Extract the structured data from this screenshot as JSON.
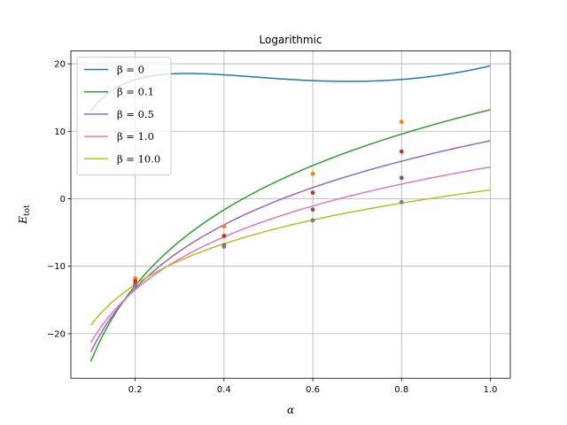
{
  "chart_data": {
    "type": "line",
    "title": "Logarithmic",
    "xlabel": "α",
    "ylabel_main": "E",
    "ylabel_sub": "tot",
    "xlim": [
      0.055,
      1.045
    ],
    "ylim": [
      -26.6,
      21.9
    ],
    "xticks": [
      0.2,
      0.4,
      0.6,
      0.8,
      1.0
    ],
    "xtick_labels": [
      "0.2",
      "0.4",
      "0.6",
      "0.8",
      "1.0"
    ],
    "yticks": [
      -20,
      -10,
      0,
      10,
      20
    ],
    "ytick_labels": [
      "−20",
      "−10",
      "0",
      "10",
      "20"
    ],
    "grid": true,
    "legend_position": "top-left",
    "series": [
      {
        "label": "β = 0",
        "color": "#1f77b4",
        "A": 19.7,
        "B": 15.4,
        "C": 35.5
      },
      {
        "label": "β = 0.1",
        "color": "#2ca02c",
        "A": 13.2,
        "B": 16.2,
        "C": 0
      },
      {
        "label": "β = 0.5",
        "color": "#9467bd",
        "A": 8.6,
        "B": 13.6,
        "C": 0
      },
      {
        "label": "β = 1.0",
        "color": "#e377c2",
        "A": 4.7,
        "B": 11.3,
        "C": 0
      },
      {
        "label": "β = 10.0",
        "color": "#bcbd22",
        "A": 1.3,
        "B": 8.7,
        "C": 0
      }
    ],
    "points": [
      {
        "x": 0.2,
        "y": -11.8,
        "color": "#ff7f0e"
      },
      {
        "x": 0.2,
        "y": -12.2,
        "color": "#d62728"
      },
      {
        "x": 0.2,
        "y": -12.6,
        "color": "#8c564b"
      },
      {
        "x": 0.2,
        "y": -12.9,
        "color": "#7f7f7f"
      },
      {
        "x": 0.4,
        "y": -4.1,
        "color": "#ff7f0e"
      },
      {
        "x": 0.4,
        "y": -5.5,
        "color": "#d62728"
      },
      {
        "x": 0.4,
        "y": -6.9,
        "color": "#8c564b"
      },
      {
        "x": 0.4,
        "y": -7.1,
        "color": "#7f7f7f"
      },
      {
        "x": 0.6,
        "y": 3.7,
        "color": "#ff7f0e"
      },
      {
        "x": 0.6,
        "y": 0.9,
        "color": "#d62728"
      },
      {
        "x": 0.6,
        "y": -1.6,
        "color": "#8c564b"
      },
      {
        "x": 0.6,
        "y": -3.2,
        "color": "#7f7f7f"
      },
      {
        "x": 0.8,
        "y": 11.4,
        "color": "#ff7f0e"
      },
      {
        "x": 0.8,
        "y": 7.0,
        "color": "#d62728"
      },
      {
        "x": 0.8,
        "y": 3.1,
        "color": "#8c564b"
      },
      {
        "x": 0.8,
        "y": -0.5,
        "color": "#7f7f7f"
      }
    ]
  }
}
